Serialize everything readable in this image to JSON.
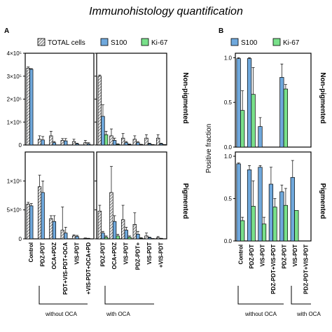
{
  "title": "Immunohistology quantification",
  "colors": {
    "total": "#e8e8e8",
    "s100": "#6fa8dc",
    "ki67": "#79e08a",
    "axis": "#000000"
  },
  "chart_data": [
    {
      "panel": "A",
      "type": "bar",
      "legend": {
        "placement": "top",
        "entries": [
          "TOTAL cells",
          "S100",
          "Ki-67"
        ]
      },
      "series_names": [
        "TOTAL cells",
        "S100",
        "Ki-67"
      ],
      "ylabel": "",
      "rows": [
        {
          "label": "Non-pigmented",
          "ylim": [
            0,
            400000
          ],
          "yticks": [
            {
              "v": 0,
              "t": "0"
            },
            {
              "v": 100000,
              "t": "1×10⁵"
            },
            {
              "v": 200000,
              "t": "2×10⁵"
            },
            {
              "v": 300000,
              "t": "3×10⁵"
            },
            {
              "v": 400000,
              "t": "4×10⁵"
            }
          ],
          "subplots": [
            {
              "categories": [
                "Control",
                "PDZ-PDT",
                "OCA+PDZ",
                "PDT+VIS-PDT+OCA",
                "VIS-PDT",
                "+VIS-PDT+OCA+PD"
              ],
              "total": [
                335000,
                25000,
                40000,
                20000,
                15000,
                10000
              ],
              "total_err": [
                5000,
                15000,
                20000,
                8000,
                10000,
                10000
              ],
              "s100": [
                330000,
                22000,
                10000,
                18000,
                5000,
                5000
              ],
              "s100_err": [
                3000,
                15000,
                5000,
                10000,
                3000,
                5000
              ],
              "ki67": [
                0,
                0,
                0,
                0,
                0,
                0
              ],
              "ki67_err": [
                0,
                0,
                0,
                0,
                0,
                0
              ]
            },
            {
              "categories": [
                "PDZ-PDT",
                "OCA+PDZ",
                "VIS-PDT",
                "PDZ-PDT+",
                "VIS-PDT",
                "+VIS-PDT"
              ],
              "total": [
                300000,
                40000,
                30000,
                25000,
                30000,
                30000
              ],
              "total_err": [
                5000,
                30000,
                20000,
                15000,
                15000,
                15000
              ],
              "s100": [
                125000,
                20000,
                10000,
                10000,
                5000,
                5000
              ],
              "s100_err": [
                50000,
                10000,
                5000,
                5000,
                3000,
                3000
              ],
              "ki67": [
                45000,
                3000,
                2000,
                2000,
                1000,
                1000
              ],
              "ki67_err": [
                15000,
                2000,
                2000,
                1000,
                1000,
                1000
              ]
            }
          ]
        },
        {
          "label": "Pigmented",
          "ylim": [
            0,
            1500000
          ],
          "yticks": [
            {
              "v": 0,
              "t": "0"
            },
            {
              "v": 500000,
              "t": "5×10⁵"
            },
            {
              "v": 1000000,
              "t": "1×10⁶"
            }
          ],
          "subplots": [
            {
              "categories": [
                "Control",
                "PDZ-PDT",
                "OCA+PDZ",
                "PDT+VIS-PDT+OCA",
                "VIS-PDT",
                "+VIS-PDT+OCA+PD"
              ],
              "total": [
                600000,
                900000,
                350000,
                150000,
                50000,
                10000
              ],
              "total_err": [
                30000,
                200000,
                50000,
                400000,
                20000,
                5000
              ],
              "s100": [
                570000,
                800000,
                300000,
                100000,
                40000,
                5000
              ],
              "s100_err": [
                40000,
                200000,
                100000,
                100000,
                20000,
                5000
              ],
              "ki67": [
                0,
                0,
                0,
                0,
                0,
                0
              ],
              "ki67_err": [
                0,
                0,
                0,
                0,
                0,
                0
              ]
            },
            {
              "categories": [
                "PDZ-PDT",
                "OCA+PDZ",
                "VIS-PDT",
                "PDZ-PDT+",
                "VIS-PDT",
                "+VIS-PDT"
              ],
              "total": [
                480000,
                800000,
                330000,
                250000,
                50000,
                20000
              ],
              "total_err": [
                100000,
                450000,
                250000,
                200000,
                50000,
                20000
              ],
              "s100": [
                100000,
                300000,
                150000,
                80000,
                20000,
                5000
              ],
              "s100_err": [
                30000,
                100000,
                50000,
                50000,
                10000,
                5000
              ],
              "ki67": [
                30000,
                50000,
                30000,
                10000,
                3000,
                1000
              ],
              "ki67_err": [
                20000,
                30000,
                20000,
                10000,
                3000,
                1000
              ]
            }
          ]
        }
      ],
      "group_labels": [
        "without OCA",
        "with OCA"
      ]
    },
    {
      "panel": "B",
      "type": "bar",
      "legend": {
        "placement": "top",
        "entries": [
          "S100",
          "Ki-67"
        ]
      },
      "ylabel": "Positive fraction",
      "ylim": [
        0,
        1.05
      ],
      "yticks": [
        {
          "v": 0,
          "t": "0.0"
        },
        {
          "v": 0.5,
          "t": "0.5"
        },
        {
          "v": 1.0,
          "t": "1.0"
        }
      ],
      "categories": [
        "Control",
        "PDZ-PDT",
        "VIS-PDT",
        "PDZ-PDT+VIS-PDT",
        "PDZ-PDT",
        "VIS-PDT",
        "PDZ-PDT+VIS-PDT"
      ],
      "rows": [
        {
          "label": "Non-pigmented",
          "s100": [
            0.99,
            0.99,
            0.23,
            0,
            0.78,
            0,
            0
          ],
          "s100_err": [
            0.01,
            0.01,
            0.1,
            0,
            0.15,
            0,
            0
          ],
          "ki67": [
            0.41,
            0.59,
            0,
            0,
            0.65,
            0,
            0
          ],
          "ki67_err": [
            0.22,
            0.3,
            0,
            0,
            0.05,
            0,
            0
          ]
        },
        {
          "label": "Pigmented",
          "s100": [
            0.91,
            0.84,
            0.87,
            0.67,
            0.58,
            0.75,
            0
          ],
          "s100_err": [
            0.01,
            0.05,
            0.02,
            0.2,
            0.08,
            0.2,
            0
          ],
          "ki67": [
            0.24,
            0.41,
            0.2,
            0.4,
            0.42,
            0.36,
            0
          ],
          "ki67_err": [
            0.04,
            0.3,
            0.08,
            0.1,
            0.2,
            0,
            0
          ]
        }
      ],
      "group_labels": [
        "without OCA",
        "with OCA"
      ]
    }
  ]
}
